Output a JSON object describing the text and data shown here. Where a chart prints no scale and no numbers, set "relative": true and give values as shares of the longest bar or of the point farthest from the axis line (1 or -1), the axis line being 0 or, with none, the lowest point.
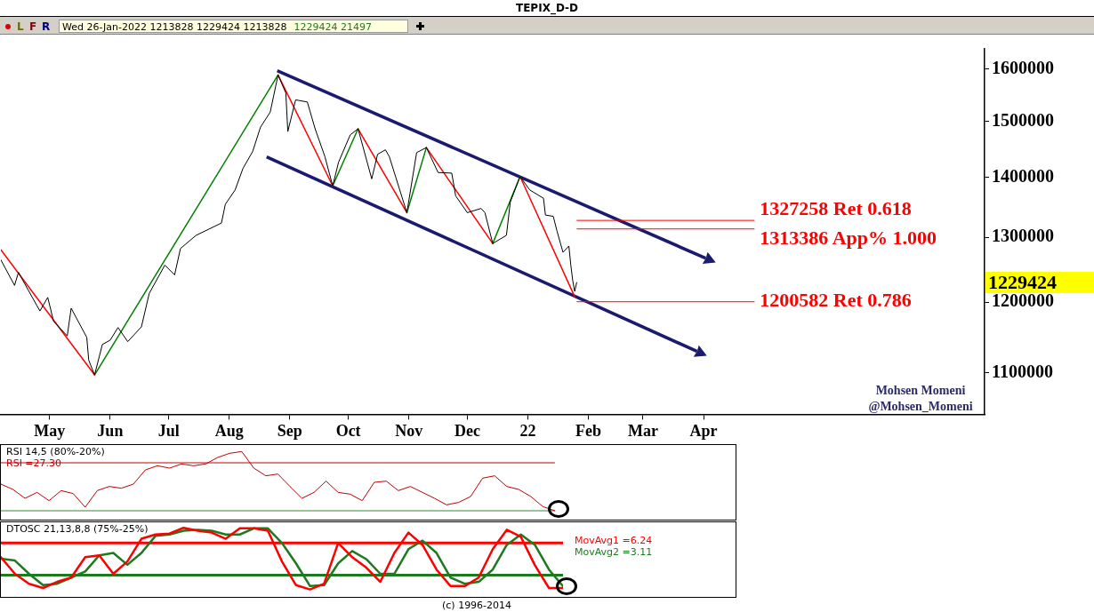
{
  "chart_data": [
    {
      "type": "line",
      "title": "TEPIX_D-D",
      "xlim": [
        "2021-04-06",
        "2022-08-23"
      ],
      "xticks": [
        {
          "value": "2021-05-01",
          "label": "May"
        },
        {
          "value": "2021-06-01",
          "label": "Jun"
        },
        {
          "value": "2021-07-01",
          "label": "Jul"
        },
        {
          "value": "2021-08-01",
          "label": "Aug"
        },
        {
          "value": "2021-09-01",
          "label": "Sep"
        },
        {
          "value": "2021-10-01",
          "label": "Oct"
        },
        {
          "value": "2021-11-01",
          "label": "Nov"
        },
        {
          "value": "2021-12-01",
          "label": "Dec"
        },
        {
          "value": "2022-01-01",
          "label": "22"
        },
        {
          "value": "2022-02-01",
          "label": "Feb"
        },
        {
          "value": "2022-03-01",
          "label": "Mar"
        },
        {
          "value": "2022-04-01",
          "label": "Apr"
        }
      ],
      "ylim": [
        1045000,
        1640000
      ],
      "yticks": [
        1100000,
        1200000,
        1300000,
        1400000,
        1500000,
        1600000
      ],
      "log": "y",
      "series": [
        {
          "color": "#000000",
          "x": [
            "2021-04-06",
            "2021-04-13",
            "2021-04-15",
            "2021-04-20",
            "2021-04-26",
            "2021-04-30",
            "2021-05-03",
            "2021-05-10",
            "2021-05-12",
            "2021-05-20",
            "2021-05-21",
            "2021-05-24",
            "2021-05-28",
            "2021-06-01",
            "2021-06-05",
            "2021-06-10",
            "2021-06-17",
            "2021-06-21",
            "2021-06-29",
            "2021-07-04",
            "2021-07-07",
            "2021-07-15",
            "2021-07-28",
            "2021-07-30",
            "2021-08-04",
            "2021-08-08",
            "2021-08-13",
            "2021-08-17",
            "2021-08-22",
            "2021-08-26",
            "2021-08-30",
            "2021-08-31",
            "2021-09-04",
            "2021-09-10",
            "2021-09-14",
            "2021-09-19",
            "2021-09-23",
            "2021-09-26",
            "2021-10-02",
            "2021-10-06",
            "2021-10-13",
            "2021-10-16",
            "2021-10-20",
            "2021-10-22",
            "2021-10-31",
            "2021-11-05",
            "2021-11-10",
            "2021-11-16",
            "2021-11-23",
            "2021-11-25",
            "2021-12-01",
            "2021-12-08",
            "2021-12-10",
            "2021-12-14",
            "2021-12-21",
            "2021-12-23",
            "2021-12-28",
            "2022-01-02",
            "2022-01-09",
            "2022-01-10",
            "2022-01-14",
            "2022-01-16",
            "2022-01-19",
            "2022-01-22",
            "2022-01-23",
            "2022-01-24",
            "2022-01-25",
            "2022-01-26"
          ],
          "values": [
            1264000,
            1225000,
            1245000,
            1218000,
            1187000,
            1207000,
            1172000,
            1151000,
            1191000,
            1149000,
            1117000,
            1097000,
            1139000,
            1145000,
            1163000,
            1143000,
            1164000,
            1213000,
            1256000,
            1241000,
            1282000,
            1303000,
            1323000,
            1354000,
            1378000,
            1415000,
            1445000,
            1489000,
            1517000,
            1588000,
            1553000,
            1481000,
            1540000,
            1536000,
            1486000,
            1436000,
            1385000,
            1426000,
            1475000,
            1486000,
            1397000,
            1440000,
            1448000,
            1436000,
            1340000,
            1443000,
            1452000,
            1408000,
            1407000,
            1368000,
            1340000,
            1347000,
            1340000,
            1290000,
            1303000,
            1358000,
            1401000,
            1378000,
            1364000,
            1336000,
            1334000,
            1309000,
            1276000,
            1286000,
            1256000,
            1232000,
            1216000,
            1229424
          ]
        },
        {
          "color": "#ff0000",
          "x": [
            "2021-04-06",
            "2021-05-24"
          ],
          "values": [
            1280000,
            1097000
          ]
        },
        {
          "color": "#008000",
          "x": [
            "2021-05-24",
            "2021-08-26"
          ],
          "values": [
            1097000,
            1588000
          ]
        },
        {
          "color": "#ff0000",
          "x": [
            "2021-08-26",
            "2021-09-23"
          ],
          "values": [
            1588000,
            1385000
          ]
        },
        {
          "color": "#008000",
          "x": [
            "2021-09-23",
            "2021-10-06"
          ],
          "values": [
            1385000,
            1486000
          ]
        },
        {
          "color": "#ff0000",
          "x": [
            "2021-10-06",
            "2021-10-31"
          ],
          "values": [
            1486000,
            1340000
          ]
        },
        {
          "color": "#008000",
          "x": [
            "2021-10-31",
            "2021-11-10"
          ],
          "values": [
            1340000,
            1452000
          ]
        },
        {
          "color": "#ff0000",
          "x": [
            "2021-11-10",
            "2021-12-14"
          ],
          "values": [
            1452000,
            1290000
          ]
        },
        {
          "color": "#008000",
          "x": [
            "2021-12-14",
            "2021-12-28"
          ],
          "values": [
            1290000,
            1401000
          ]
        },
        {
          "color": "#ff0000",
          "x": [
            "2021-12-28",
            "2022-01-25"
          ],
          "values": [
            1401000,
            1208000
          ]
        }
      ],
      "ref_lines": [
        {
          "axis": "y",
          "value": 1327258,
          "label": "1327258 Ret 0.618",
          "color": "#ff0000"
        },
        {
          "axis": "y",
          "value": 1313386,
          "label": "1313386 App% 1.000",
          "color": "#ff0000"
        },
        {
          "axis": "y",
          "value": 1200582,
          "label": "1200582 Ret 0.786",
          "color": "#ff0000"
        }
      ],
      "annotations": [
        "L",
        "F",
        "R",
        "Wed 26-Jan-2022 1213828 1229424 1213828",
        "1229424 21497",
        "Mohsen Momeni",
        "@Mohsen_Momeni",
        "1229424",
        "(c) 1996-2014"
      ]
    },
    {
      "type": "line",
      "title": "RSI 14,5 (80%-20%)",
      "relative": true,
      "tick_labels": false,
      "categories": [
        null,
        null,
        null,
        null,
        null,
        null,
        null,
        null,
        null,
        null,
        null,
        null,
        null,
        null,
        null,
        null,
        null,
        null,
        null,
        null,
        null,
        null,
        null,
        null,
        null,
        null,
        null,
        null,
        null,
        null,
        null,
        null,
        null,
        null,
        null,
        null,
        null,
        null,
        null,
        null,
        null,
        null,
        null,
        null,
        null,
        null,
        null,
        null,
        null,
        null,
        null,
        null,
        null,
        null,
        null,
        null,
        null,
        null,
        null,
        null,
        null,
        null
      ],
      "series": [
        {
          "color": "#c00000",
          "values": [
            0.45,
            0.36,
            0.21,
            0.31,
            0.17,
            0.34,
            0.29,
            0.06,
            0.34,
            0.41,
            0.38,
            0.45,
            0.69,
            0.76,
            0.72,
            0.79,
            0.76,
            0.79,
            0.9,
            0.97,
            1.0,
            0.72,
            0.59,
            0.62,
            0.41,
            0.21,
            0.31,
            0.5,
            0.31,
            0.28,
            0.17,
            0.48,
            0.5,
            0.34,
            0.41,
            0.31,
            0.21,
            0.1,
            0.14,
            0.24,
            0.55,
            0.59,
            0.41,
            0.36,
            0.24,
            0.07,
            0,
            null,
            null,
            null,
            null,
            null,
            null,
            null,
            null,
            null,
            null,
            null,
            null,
            null,
            null,
            null
          ]
        }
      ],
      "ref_lines": [
        {
          "axis": "y",
          "value": 0.81,
          "color": "#c00000"
        },
        {
          "axis": "y",
          "value": 0,
          "color": "#2e8b2e"
        }
      ],
      "annotations": [
        "RSI =27.30"
      ]
    },
    {
      "type": "line",
      "title": "DTOSC 21,13,8,8 (75%-25%)",
      "relative": true,
      "tick_labels": false,
      "categories": [
        null,
        null,
        null,
        null,
        null,
        null,
        null,
        null,
        null,
        null,
        null,
        null,
        null,
        null,
        null,
        null,
        null,
        null,
        null,
        null,
        null,
        null,
        null,
        null,
        null,
        null,
        null,
        null,
        null,
        null,
        null,
        null,
        null,
        null,
        null,
        null,
        null,
        null,
        null,
        null,
        null
      ],
      "series": [
        {
          "color": "#ff0000",
          "values": [
            0.38,
            0.03,
            -0.18,
            -0.27,
            -0.14,
            -0.05,
            0.38,
            0.42,
            0.03,
            0.29,
            0.77,
            0.86,
            0.88,
            1.0,
            0.94,
            0.9,
            0.77,
            0.99,
            0.99,
            0.94,
            0.29,
            -0.21,
            -0.3,
            -0.18,
            0.68,
            0.38,
            0.16,
            -0.14,
            0.47,
            0.9,
            0.64,
            0.12,
            -0.23,
            -0.23,
            -0.05,
            0.55,
            0.96,
            0.81,
            0.21,
            -0.27,
            -0.27
          ]
        },
        {
          "color": "#1e7a1e",
          "values": [
            0.35,
            0.31,
            0.03,
            -0.21,
            -0.18,
            -0.05,
            0.08,
            0.42,
            0.47,
            0.22,
            0.47,
            0.83,
            0.86,
            0.94,
            0.96,
            0.94,
            0.86,
            0.86,
            0.99,
            0.99,
            0.68,
            0.25,
            -0.23,
            -0.21,
            0.25,
            0.51,
            0.34,
            0.03,
            0.03,
            0.55,
            0.73,
            0.47,
            -0.05,
            -0.18,
            -0.14,
            0.12,
            0.64,
            0.86,
            0.64,
            0.12,
            -0.23
          ]
        }
      ],
      "ref_lines": [
        {
          "axis": "y",
          "value": 0.68,
          "color": "#ff0000"
        },
        {
          "axis": "y",
          "value": 0,
          "color": "#1e7a1e"
        }
      ],
      "annotations": [
        "MovAvg1 =6.24",
        "MovAvg2 =3.11"
      ]
    }
  ]
}
